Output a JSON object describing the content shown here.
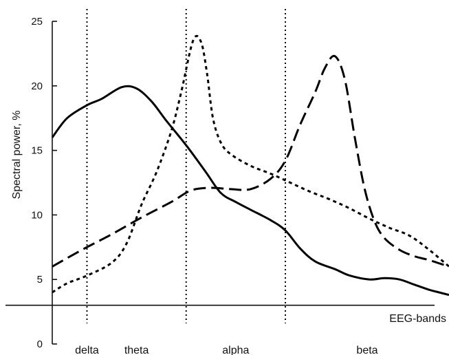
{
  "chart_data": {
    "type": "line",
    "ylabel": "Spectral power, %",
    "xlabel": "EEG-bands",
    "ylim": [
      0,
      25
    ],
    "yticks": [
      0,
      5,
      10,
      15,
      20,
      25
    ],
    "grid": false,
    "legend": "none",
    "x_range": [
      0,
      4
    ],
    "bands": [
      "delta",
      "theta",
      "alpha",
      "beta"
    ],
    "band_boundaries": [
      0.35,
      1.35,
      2.35
    ],
    "baseline": 3,
    "series": [
      {
        "style": "solid",
        "x": [
          0,
          0.15,
          0.35,
          0.5,
          0.7,
          0.85,
          1.0,
          1.15,
          1.35,
          1.55,
          1.7,
          1.85,
          2.0,
          2.2,
          2.35,
          2.5,
          2.65,
          2.85,
          3.0,
          3.2,
          3.35,
          3.5,
          3.65,
          3.8,
          3.9,
          4.0
        ],
        "y": [
          16,
          17.5,
          18.5,
          19,
          19.9,
          19.8,
          18.8,
          17.3,
          15.4,
          13.3,
          11.7,
          11.0,
          10.4,
          9.6,
          8.8,
          7.4,
          6.4,
          5.8,
          5.3,
          5.0,
          5.1,
          5.0,
          4.6,
          4.2,
          4.0,
          3.8
        ]
      },
      {
        "style": "short-dash",
        "x": [
          0,
          0.15,
          0.35,
          0.6,
          0.75,
          0.9,
          1.05,
          1.2,
          1.3,
          1.42,
          1.5,
          1.56,
          1.62,
          1.7,
          1.8,
          2.0,
          2.2,
          2.4,
          2.6,
          2.8,
          3.0,
          3.2,
          3.4,
          3.6,
          3.8,
          4.0
        ],
        "y": [
          4,
          4.7,
          5.3,
          6.3,
          7.8,
          10.8,
          13.3,
          16.5,
          19.5,
          23.5,
          23.4,
          21.0,
          17.5,
          15.6,
          14.7,
          13.8,
          13.2,
          12.5,
          11.8,
          11.2,
          10.5,
          9.7,
          9.0,
          8.4,
          7.3,
          6.0
        ]
      },
      {
        "style": "long-dash",
        "x": [
          0,
          0.3,
          0.6,
          0.9,
          1.2,
          1.4,
          1.6,
          1.8,
          2.0,
          2.2,
          2.35,
          2.5,
          2.65,
          2.75,
          2.85,
          2.95,
          3.05,
          3.15,
          3.25,
          3.35,
          3.5,
          3.65,
          3.8,
          4.0
        ],
        "y": [
          6,
          7.3,
          8.5,
          9.8,
          11.0,
          11.9,
          12.1,
          12.0,
          12.0,
          12.8,
          14.2,
          17.0,
          19.5,
          21.4,
          22.3,
          20.5,
          16.0,
          12.0,
          9.5,
          8.2,
          7.3,
          6.8,
          6.5,
          6.0
        ]
      }
    ]
  }
}
